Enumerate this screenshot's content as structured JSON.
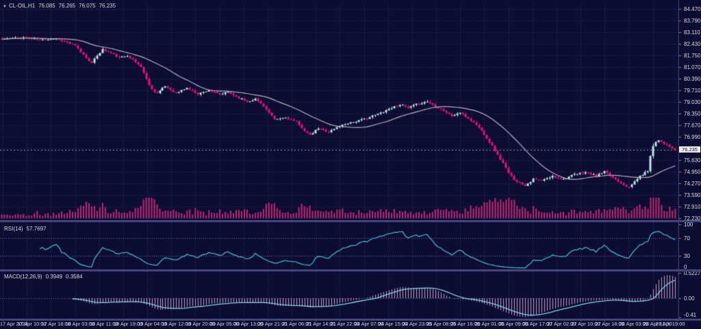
{
  "quote_bar": {
    "arrow": "▼",
    "symbol_period": "CL-OIL,H1",
    "open": "76.085",
    "high": "76.265",
    "low": "76.075",
    "close": "76.235"
  },
  "price_axis": {
    "labels": [
      "84.470",
      "83.790",
      "83.110",
      "82.430",
      "81.750",
      "81.070",
      "80.390",
      "79.710",
      "79.030",
      "78.350",
      "77.670",
      "76.990",
      "75.630",
      "74.950",
      "74.270",
      "73.590",
      "72.910",
      "72.230"
    ],
    "current_price": "76.235"
  },
  "time_axis": {
    "labels": [
      "17 Apr 2023",
      "17 Apr 10:00",
      "17 Apr 18:00",
      "18 Apr 03:00",
      "18 Apr 11:00",
      "18 Apr 19:00",
      "19 Apr 04:00",
      "19 Apr 12:00",
      "19 Apr 20:00",
      "20 Apr 05:00",
      "20 Apr 13:00",
      "20 Apr 21:00",
      "21 Apr 06:00",
      "21 Apr 14:00",
      "21 Apr 22:00",
      "24 Apr 07:00",
      "24 Apr 15:00",
      "24 Apr 23:00",
      "25 Apr 08:00",
      "25 Apr 16:00",
      "26 Apr 01:00",
      "26 Apr 09:00",
      "26 Apr 17:00",
      "27 Apr 02:00",
      "27 Apr 10:00",
      "27 Apr 18:00",
      "28 Apr 03:00",
      "28 Apr 11:00",
      "28 Apr 19:00"
    ]
  },
  "panels": {
    "rsi": {
      "name": "RSI(14)",
      "value": "57.7697",
      "scale_labels": [
        "100",
        "70",
        "30",
        "0"
      ],
      "level_lines": [
        70,
        30
      ]
    },
    "macd": {
      "name": "MACD(12,26,9)",
      "value_main": "0.3949",
      "value_signal": "0.3584",
      "scale_labels": [
        "0.5227",
        "0.00",
        "-0.41"
      ]
    }
  },
  "colors": {
    "background": "#0d0d34",
    "grid": "#2e2e5c",
    "bull": "#bfe9e2",
    "bear": "#ef0f7c",
    "ma": "#b4b2be",
    "volume": "#c02973",
    "rsi_line": "#44c4d2",
    "macd_signal": "#7fd8e2",
    "macd_hist": "#c79fc0",
    "axis_text": "#d7d7e2",
    "tick_mark": "#8a8aa0",
    "level_line": "#6a6a96",
    "price_line": "#9a9ab6",
    "separator": "#56568c"
  },
  "chart_data": {
    "type": "candlestick",
    "symbol": "CL-OIL",
    "timeframe": "H1",
    "title": "CL-OIL,H1 76.085 76.265 76.075 76.235",
    "visible_range": {
      "from": "17 Apr 2023 00:00",
      "to": "28 Apr 2023 23:00"
    },
    "last_ohlc": {
      "open": 76.085,
      "high": 76.265,
      "low": 76.075,
      "close": 76.235
    },
    "y_axis": {
      "min": 72.23,
      "max": 84.47,
      "tick_step": 0.68,
      "gridline_prices": [
        84.47,
        83.79,
        83.11,
        82.43,
        81.75,
        81.07,
        80.39,
        79.71,
        79.03,
        78.35,
        77.67,
        76.99,
        76.31,
        75.63,
        74.95,
        74.27,
        73.59,
        72.91,
        72.23
      ]
    },
    "candle_count": 248,
    "close_waypoints": [
      [
        0,
        82.7
      ],
      [
        8,
        82.8
      ],
      [
        14,
        82.66
      ],
      [
        20,
        82.74
      ],
      [
        24,
        82.52
      ],
      [
        27,
        82.3
      ],
      [
        29,
        81.95
      ],
      [
        31,
        81.62
      ],
      [
        33,
        81.3
      ],
      [
        35,
        81.75
      ],
      [
        37,
        82.1
      ],
      [
        40,
        81.9
      ],
      [
        43,
        81.6
      ],
      [
        46,
        81.75
      ],
      [
        49,
        81.35
      ],
      [
        51,
        81.1
      ],
      [
        53,
        80.35
      ],
      [
        55,
        79.75
      ],
      [
        57,
        79.55
      ],
      [
        60,
        79.95
      ],
      [
        64,
        79.55
      ],
      [
        68,
        79.85
      ],
      [
        72,
        79.5
      ],
      [
        76,
        79.72
      ],
      [
        80,
        79.45
      ],
      [
        83,
        79.6
      ],
      [
        86,
        79.35
      ],
      [
        90,
        79.05
      ],
      [
        93,
        79.2
      ],
      [
        96,
        78.8
      ],
      [
        100,
        77.98
      ],
      [
        104,
        78.12
      ],
      [
        108,
        77.85
      ],
      [
        111,
        77.35
      ],
      [
        113,
        77.08
      ],
      [
        116,
        77.48
      ],
      [
        120,
        77.28
      ],
      [
        124,
        77.62
      ],
      [
        127,
        77.8
      ],
      [
        130,
        77.88
      ],
      [
        134,
        78.08
      ],
      [
        138,
        78.32
      ],
      [
        142,
        78.62
      ],
      [
        146,
        78.88
      ],
      [
        149,
        78.68
      ],
      [
        152,
        78.88
      ],
      [
        156,
        79.05
      ],
      [
        159,
        78.78
      ],
      [
        162,
        78.52
      ],
      [
        165,
        78.22
      ],
      [
        168,
        78.4
      ],
      [
        171,
        78.06
      ],
      [
        174,
        77.7
      ],
      [
        177,
        77.15
      ],
      [
        180,
        76.45
      ],
      [
        182,
        75.9
      ],
      [
        184,
        75.45
      ],
      [
        186,
        74.85
      ],
      [
        188,
        74.5
      ],
      [
        190,
        74.3
      ],
      [
        192,
        74.15
      ],
      [
        195,
        74.5
      ],
      [
        198,
        74.42
      ],
      [
        202,
        74.68
      ],
      [
        206,
        74.52
      ],
      [
        210,
        74.78
      ],
      [
        214,
        74.92
      ],
      [
        218,
        74.7
      ],
      [
        221,
        74.95
      ],
      [
        224,
        74.6
      ],
      [
        227,
        74.3
      ],
      [
        229,
        74.1
      ],
      [
        230,
        74.02
      ],
      [
        231,
        74.2
      ],
      [
        233,
        74.55
      ],
      [
        235,
        74.8
      ],
      [
        237,
        75.0
      ],
      [
        238,
        75.9
      ],
      [
        239,
        76.45
      ],
      [
        240,
        76.7
      ],
      [
        241,
        76.82
      ],
      [
        243,
        76.6
      ],
      [
        245,
        76.4
      ],
      [
        247,
        76.235
      ]
    ],
    "overlays": [
      {
        "type": "sma",
        "period": 24
      }
    ],
    "indicators": [
      {
        "name": "RSI",
        "period": 14,
        "last_value": 57.7697,
        "scale": [
          0,
          100
        ],
        "levels": [
          30,
          70
        ]
      },
      {
        "name": "MACD",
        "fast": 12,
        "slow": 26,
        "signal": 9,
        "last_main": 0.3949,
        "last_signal": 0.3584,
        "scale_max": 0.5227,
        "scale_min": -0.41
      },
      {
        "name": "Volume",
        "style": "histogram at base of main panel"
      }
    ]
  }
}
